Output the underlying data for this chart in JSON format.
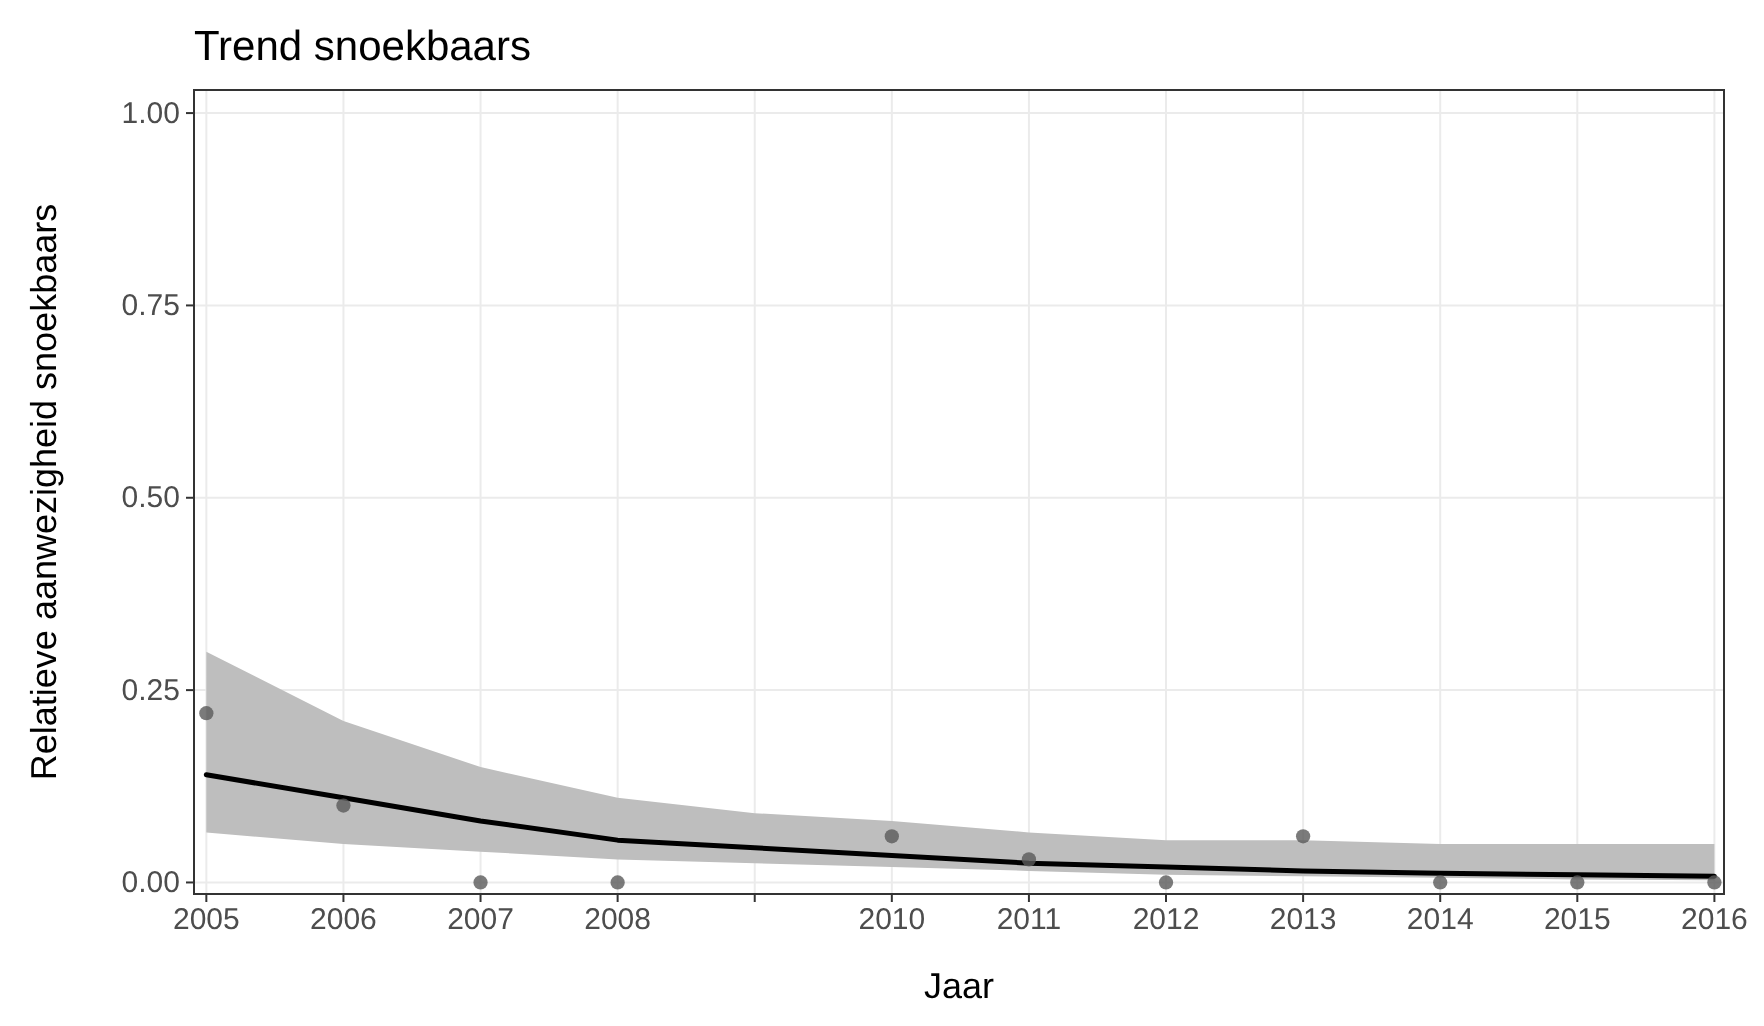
{
  "chart_data": {
    "type": "scatter",
    "title": "Trend snoekbaars",
    "xlabel": "Jaar",
    "ylabel": "Relatieve aanwezigheid snoekbaars",
    "xlim": [
      2004.91,
      2016.07
    ],
    "ylim": [
      -0.015,
      1.03
    ],
    "xticks": [
      2005,
      2006,
      2007,
      2008,
      {
        "value": 2009,
        "label": null
      },
      2010,
      2011,
      2012,
      2013,
      2014,
      2015,
      2016
    ],
    "yticks": [
      {
        "value": 0,
        "label": "0.00"
      },
      {
        "value": 0.25,
        "label": "0.25"
      },
      {
        "value": 0.5,
        "label": "0.50"
      },
      {
        "value": 0.75,
        "label": "0.75"
      },
      {
        "value": 1,
        "label": "1.00"
      }
    ],
    "grid": true,
    "line_style": "solid",
    "series": [
      {
        "type": "line",
        "color": "#000000",
        "x": [
          2005,
          2006,
          2007,
          2008,
          2009,
          2010,
          2011,
          2012,
          2013,
          2014,
          2015,
          2016
        ],
        "values": [
          0.14,
          0.11,
          0.08,
          0.055,
          0.045,
          0.035,
          0.025,
          0.02,
          0.015,
          0.012,
          0.01,
          0.008
        ],
        "lower": [
          0.065,
          0.05,
          0.04,
          0.03,
          0.025,
          0.02,
          0.015,
          0.01,
          0.008,
          0.006,
          0.004,
          0.003
        ],
        "upper": [
          0.3,
          0.21,
          0.15,
          0.11,
          0.09,
          0.08,
          0.065,
          0.055,
          0.055,
          0.05,
          0.05,
          0.05
        ]
      },
      {
        "marker": "circle",
        "color": "#5a5a5a",
        "x": [
          2005,
          2006,
          2007,
          2008,
          2010,
          2011,
          2012,
          2013,
          2014,
          2015,
          2016
        ],
        "values": [
          0.22,
          0.1,
          0,
          0,
          0.06,
          0.03,
          0,
          0.06,
          0,
          0,
          0
        ]
      }
    ]
  }
}
